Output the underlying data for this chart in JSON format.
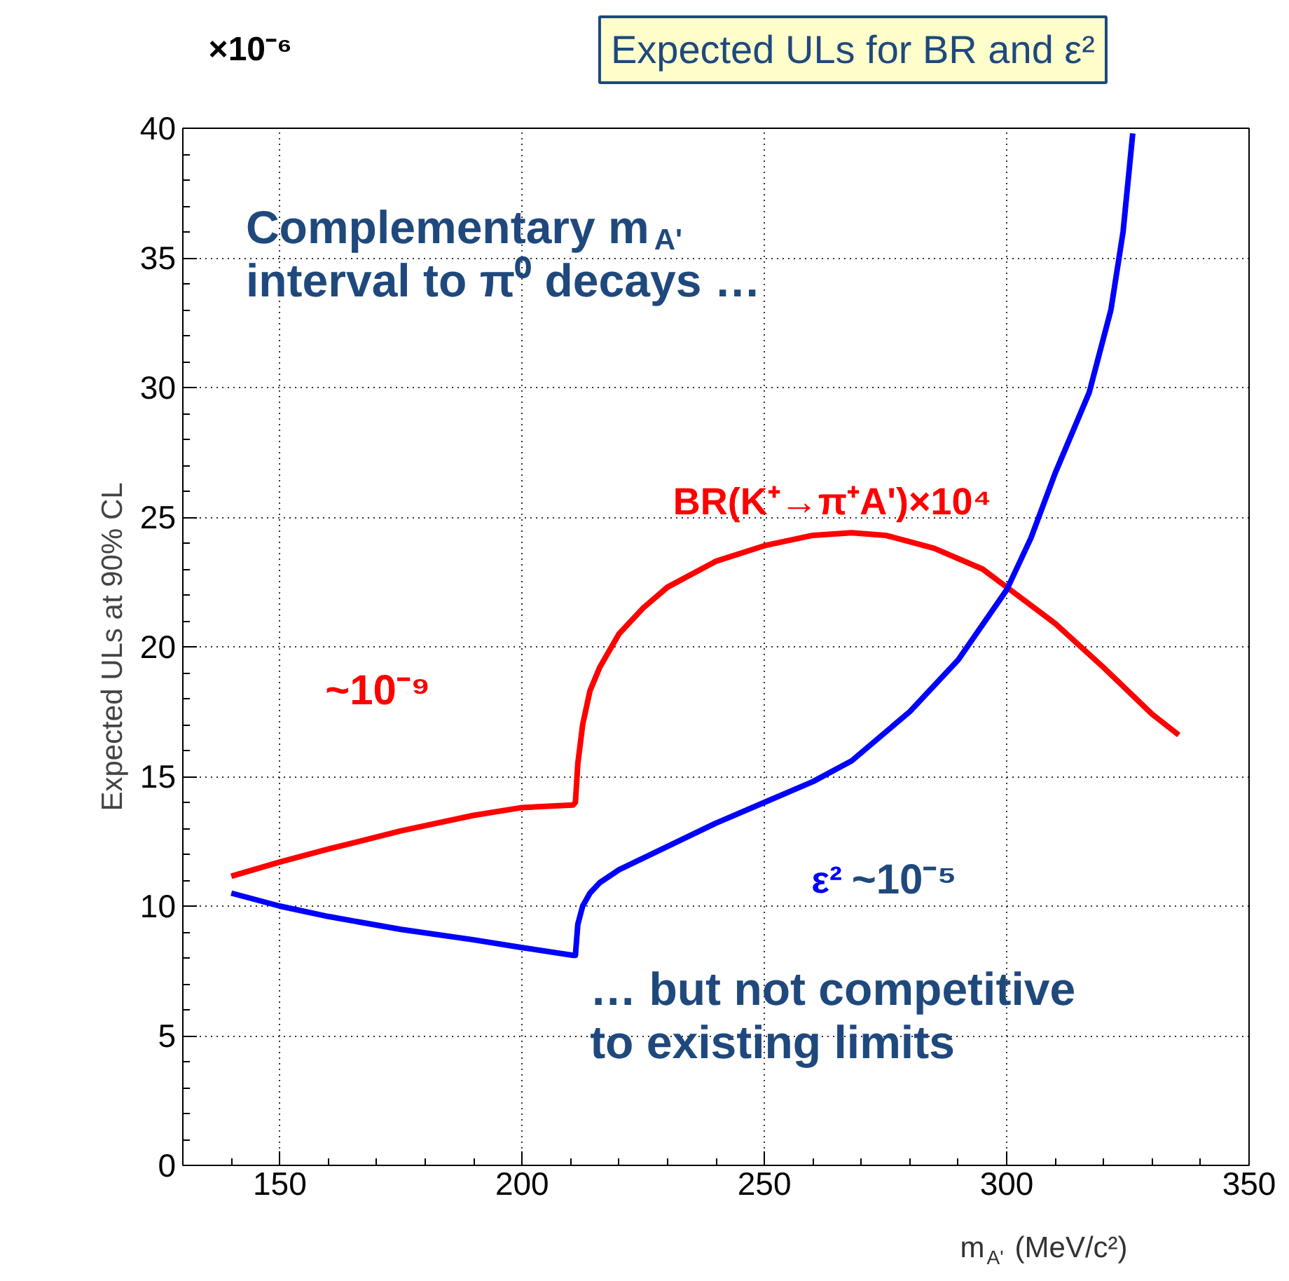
{
  "chart_data": {
    "type": "line",
    "title": "Expected ULs for BR and ε²",
    "xlabel": "m$_{A'}$ (MeV/c²)",
    "ylabel": "Expected ULs at 90% CL",
    "xlim": [
      130,
      350
    ],
    "xticks": [
      150,
      200,
      250,
      300,
      350
    ],
    "ylim": [
      0,
      40
    ],
    "yticks": [
      0,
      5,
      10,
      15,
      20,
      25,
      30,
      35,
      40
    ],
    "grid": true,
    "line_style": "solid",
    "marker": "none",
    "annotations": [
      "×10⁻⁶",
      "Complementary m$_{A'}$\ninterval to π⁰ decays …",
      "~10⁻⁹",
      "~10⁻⁵",
      "… but not competitive\nto existing limits"
    ],
    "series": [
      {
        "name": "BR(K⁺→π⁺A')×10⁴",
        "color": "#ff0000",
        "x": [
          140,
          150,
          160,
          175,
          190,
          200,
          210.5,
          211,
          211.5,
          212.5,
          214,
          216,
          220,
          225,
          230,
          240,
          250,
          260,
          268,
          275,
          285,
          295,
          300,
          310,
          320,
          330,
          335.5
        ],
        "values": [
          11.15,
          11.7,
          12.2,
          12.9,
          13.5,
          13.8,
          13.9,
          14.0,
          15.5,
          17.0,
          18.3,
          19.2,
          20.5,
          21.5,
          22.3,
          23.3,
          23.9,
          24.3,
          24.4,
          24.3,
          23.8,
          23.0,
          22.3,
          20.9,
          19.2,
          17.4,
          16.6
        ]
      },
      {
        "name": "ε²",
        "color": "#0000ff",
        "x": [
          140,
          150,
          160,
          175,
          190,
          200,
          210.5,
          211,
          211.5,
          212.5,
          214,
          216,
          220,
          230,
          240,
          250,
          260,
          268,
          280,
          290,
          300,
          305,
          310,
          317,
          321.5,
          324,
          326
        ],
        "values": [
          10.5,
          10.0,
          9.6,
          9.1,
          8.7,
          8.4,
          8.1,
          8.1,
          9.3,
          10.0,
          10.5,
          10.9,
          11.4,
          12.3,
          13.2,
          14.0,
          14.8,
          15.6,
          17.5,
          19.5,
          22.2,
          24.2,
          26.7,
          29.8,
          33.0,
          36.0,
          39.8
        ]
      }
    ]
  }
}
